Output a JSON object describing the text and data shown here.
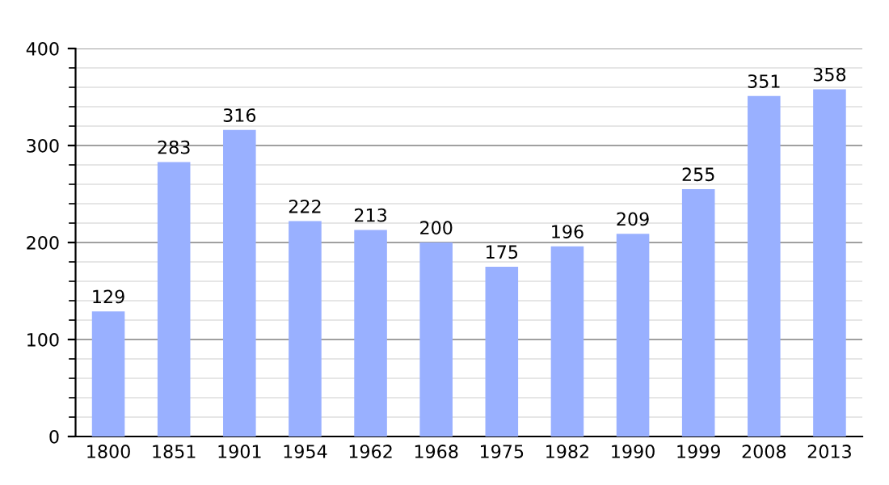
{
  "chart_data": {
    "type": "bar",
    "categories": [
      "1800",
      "1851",
      "1901",
      "1954",
      "1962",
      "1968",
      "1975",
      "1982",
      "1990",
      "1999",
      "2008",
      "2013"
    ],
    "values": [
      129,
      283,
      316,
      222,
      213,
      200,
      175,
      196,
      209,
      255,
      351,
      358
    ],
    "color": "#99b0ff",
    "ylim": [
      0,
      400
    ],
    "yticks": [
      0,
      100,
      200,
      300,
      400
    ],
    "grid": "y",
    "data_labels": true
  }
}
